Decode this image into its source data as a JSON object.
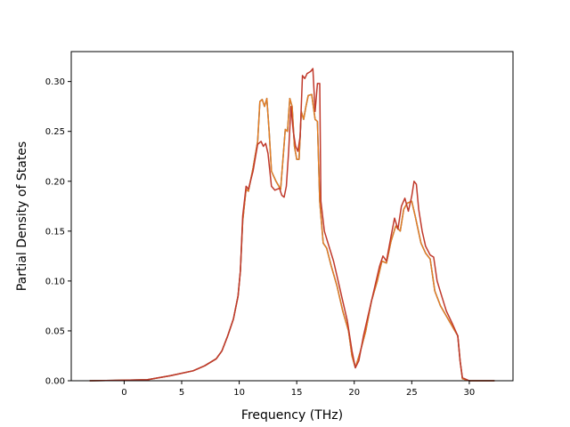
{
  "chart_data": {
    "type": "line",
    "title": "",
    "xlabel": "Frequency (THz)",
    "ylabel": "Partial Density of States",
    "xlim": [
      -4.6,
      33.8
    ],
    "ylim": [
      0,
      0.33
    ],
    "xticks": [
      0,
      5,
      10,
      15,
      20,
      25,
      30
    ],
    "yticks": [
      0.0,
      0.05,
      0.1,
      0.15,
      0.2,
      0.25,
      0.3
    ],
    "xtick_labels": [
      "0",
      "5",
      "10",
      "15",
      "20",
      "25",
      "30"
    ],
    "ytick_labels": [
      "0.00",
      "0.05",
      "0.10",
      "0.15",
      "0.20",
      "0.25",
      "0.30"
    ],
    "grid": false,
    "legend": "none",
    "series": [
      {
        "color": "#1f5fa0",
        "points": [
          [
            -3.0,
            0
          ],
          [
            0,
            0.0005
          ],
          [
            2,
            0.001
          ],
          [
            4,
            0.005
          ],
          [
            6,
            0.01
          ],
          [
            7,
            0.015
          ],
          [
            8,
            0.022
          ],
          [
            8.5,
            0.03
          ],
          [
            9,
            0.045
          ],
          [
            9.5,
            0.062
          ],
          [
            9.9,
            0.085
          ],
          [
            10.1,
            0.11
          ],
          [
            10.3,
            0.16
          ],
          [
            10.6,
            0.192
          ],
          [
            10.8,
            0.19
          ],
          [
            11.2,
            0.213
          ],
          [
            11.6,
            0.24
          ],
          [
            11.8,
            0.28
          ],
          [
            12.0,
            0.282
          ],
          [
            12.2,
            0.275
          ],
          [
            12.4,
            0.283
          ],
          [
            12.6,
            0.25
          ],
          [
            12.8,
            0.21
          ],
          [
            13.2,
            0.2
          ],
          [
            13.6,
            0.192
          ],
          [
            14.0,
            0.252
          ],
          [
            14.2,
            0.25
          ],
          [
            14.4,
            0.283
          ],
          [
            14.6,
            0.275
          ],
          [
            14.8,
            0.235
          ],
          [
            15.0,
            0.222
          ],
          [
            15.2,
            0.222
          ],
          [
            15.4,
            0.27
          ],
          [
            15.6,
            0.262
          ],
          [
            15.8,
            0.275
          ],
          [
            16.0,
            0.286
          ],
          [
            16.3,
            0.287
          ],
          [
            16.6,
            0.262
          ],
          [
            16.8,
            0.26
          ],
          [
            17.0,
            0.18
          ],
          [
            17.3,
            0.138
          ],
          [
            17.6,
            0.133
          ],
          [
            18.0,
            0.115
          ],
          [
            18.5,
            0.095
          ],
          [
            19.0,
            0.07
          ],
          [
            19.5,
            0.05
          ],
          [
            19.8,
            0.025
          ],
          [
            20.1,
            0.013
          ],
          [
            20.5,
            0.028
          ],
          [
            21.0,
            0.05
          ],
          [
            21.5,
            0.08
          ],
          [
            22.0,
            0.1
          ],
          [
            22.4,
            0.12
          ],
          [
            22.8,
            0.118
          ],
          [
            23.2,
            0.14
          ],
          [
            23.6,
            0.155
          ],
          [
            24.0,
            0.15
          ],
          [
            24.3,
            0.172
          ],
          [
            24.6,
            0.178
          ],
          [
            25.0,
            0.18
          ],
          [
            25.3,
            0.165
          ],
          [
            25.8,
            0.138
          ],
          [
            26.2,
            0.128
          ],
          [
            26.6,
            0.122
          ],
          [
            27.0,
            0.09
          ],
          [
            27.5,
            0.075
          ],
          [
            28.0,
            0.065
          ],
          [
            28.5,
            0.055
          ],
          [
            29.0,
            0.045
          ],
          [
            29.2,
            0.02
          ],
          [
            29.4,
            0.002
          ],
          [
            30,
            0
          ],
          [
            32.2,
            0
          ]
        ]
      },
      {
        "color": "#e67e22",
        "points": [
          [
            -3.0,
            0
          ],
          [
            0,
            0.0005
          ],
          [
            2,
            0.001
          ],
          [
            4,
            0.005
          ],
          [
            6,
            0.01
          ],
          [
            7,
            0.015
          ],
          [
            8,
            0.022
          ],
          [
            8.5,
            0.03
          ],
          [
            9,
            0.045
          ],
          [
            9.5,
            0.062
          ],
          [
            9.9,
            0.085
          ],
          [
            10.1,
            0.11
          ],
          [
            10.3,
            0.16
          ],
          [
            10.6,
            0.192
          ],
          [
            10.8,
            0.19
          ],
          [
            11.2,
            0.213
          ],
          [
            11.6,
            0.24
          ],
          [
            11.8,
            0.28
          ],
          [
            12.0,
            0.282
          ],
          [
            12.2,
            0.275
          ],
          [
            12.4,
            0.283
          ],
          [
            12.6,
            0.25
          ],
          [
            12.8,
            0.21
          ],
          [
            13.2,
            0.2
          ],
          [
            13.6,
            0.192
          ],
          [
            14.0,
            0.252
          ],
          [
            14.2,
            0.25
          ],
          [
            14.4,
            0.283
          ],
          [
            14.6,
            0.275
          ],
          [
            14.8,
            0.235
          ],
          [
            15.0,
            0.222
          ],
          [
            15.2,
            0.222
          ],
          [
            15.4,
            0.27
          ],
          [
            15.6,
            0.262
          ],
          [
            15.8,
            0.275
          ],
          [
            16.0,
            0.286
          ],
          [
            16.3,
            0.287
          ],
          [
            16.6,
            0.262
          ],
          [
            16.8,
            0.26
          ],
          [
            17.0,
            0.18
          ],
          [
            17.3,
            0.138
          ],
          [
            17.6,
            0.133
          ],
          [
            18.0,
            0.115
          ],
          [
            18.5,
            0.095
          ],
          [
            19.0,
            0.07
          ],
          [
            19.5,
            0.05
          ],
          [
            19.8,
            0.025
          ],
          [
            20.1,
            0.013
          ],
          [
            20.5,
            0.028
          ],
          [
            21.0,
            0.05
          ],
          [
            21.5,
            0.08
          ],
          [
            22.0,
            0.1
          ],
          [
            22.4,
            0.12
          ],
          [
            22.8,
            0.118
          ],
          [
            23.2,
            0.14
          ],
          [
            23.6,
            0.155
          ],
          [
            24.0,
            0.15
          ],
          [
            24.3,
            0.172
          ],
          [
            24.6,
            0.178
          ],
          [
            25.0,
            0.18
          ],
          [
            25.3,
            0.165
          ],
          [
            25.8,
            0.138
          ],
          [
            26.2,
            0.128
          ],
          [
            26.6,
            0.122
          ],
          [
            27.0,
            0.09
          ],
          [
            27.5,
            0.075
          ],
          [
            28.0,
            0.065
          ],
          [
            28.5,
            0.055
          ],
          [
            29.0,
            0.045
          ],
          [
            29.2,
            0.02
          ],
          [
            29.4,
            0.002
          ],
          [
            30,
            0
          ],
          [
            32.2,
            0
          ]
        ]
      },
      {
        "color": "#c0392b",
        "points": [
          [
            -3.0,
            0
          ],
          [
            0,
            0.0005
          ],
          [
            2,
            0.001
          ],
          [
            4,
            0.005
          ],
          [
            6,
            0.01
          ],
          [
            7,
            0.015
          ],
          [
            8,
            0.022
          ],
          [
            8.5,
            0.03
          ],
          [
            9,
            0.045
          ],
          [
            9.5,
            0.062
          ],
          [
            9.9,
            0.085
          ],
          [
            10.1,
            0.11
          ],
          [
            10.3,
            0.165
          ],
          [
            10.6,
            0.195
          ],
          [
            10.8,
            0.192
          ],
          [
            11.2,
            0.21
          ],
          [
            11.6,
            0.237
          ],
          [
            11.9,
            0.24
          ],
          [
            12.1,
            0.235
          ],
          [
            12.3,
            0.238
          ],
          [
            12.5,
            0.228
          ],
          [
            12.8,
            0.195
          ],
          [
            13.1,
            0.191
          ],
          [
            13.5,
            0.193
          ],
          [
            13.7,
            0.186
          ],
          [
            13.9,
            0.184
          ],
          [
            14.1,
            0.195
          ],
          [
            14.3,
            0.23
          ],
          [
            14.5,
            0.275
          ],
          [
            14.7,
            0.25
          ],
          [
            14.9,
            0.235
          ],
          [
            15.1,
            0.23
          ],
          [
            15.3,
            0.245
          ],
          [
            15.5,
            0.306
          ],
          [
            15.7,
            0.303
          ],
          [
            15.9,
            0.308
          ],
          [
            16.2,
            0.31
          ],
          [
            16.4,
            0.313
          ],
          [
            16.6,
            0.27
          ],
          [
            16.8,
            0.298
          ],
          [
            17.0,
            0.298
          ],
          [
            17.1,
            0.18
          ],
          [
            17.4,
            0.15
          ],
          [
            17.8,
            0.135
          ],
          [
            18.2,
            0.12
          ],
          [
            18.6,
            0.1
          ],
          [
            19.0,
            0.08
          ],
          [
            19.4,
            0.06
          ],
          [
            19.8,
            0.03
          ],
          [
            20.1,
            0.013
          ],
          [
            20.4,
            0.02
          ],
          [
            20.8,
            0.045
          ],
          [
            21.3,
            0.07
          ],
          [
            21.8,
            0.095
          ],
          [
            22.2,
            0.115
          ],
          [
            22.5,
            0.125
          ],
          [
            22.8,
            0.12
          ],
          [
            23.2,
            0.145
          ],
          [
            23.5,
            0.163
          ],
          [
            23.8,
            0.152
          ],
          [
            24.1,
            0.175
          ],
          [
            24.4,
            0.183
          ],
          [
            24.7,
            0.17
          ],
          [
            25.0,
            0.185
          ],
          [
            25.2,
            0.2
          ],
          [
            25.4,
            0.197
          ],
          [
            25.6,
            0.172
          ],
          [
            25.9,
            0.15
          ],
          [
            26.2,
            0.135
          ],
          [
            26.6,
            0.126
          ],
          [
            26.9,
            0.124
          ],
          [
            27.2,
            0.1
          ],
          [
            27.6,
            0.085
          ],
          [
            28.0,
            0.07
          ],
          [
            28.5,
            0.058
          ],
          [
            29.0,
            0.045
          ],
          [
            29.2,
            0.02
          ],
          [
            29.4,
            0.003
          ],
          [
            30,
            0
          ],
          [
            32.2,
            0
          ]
        ]
      }
    ]
  }
}
